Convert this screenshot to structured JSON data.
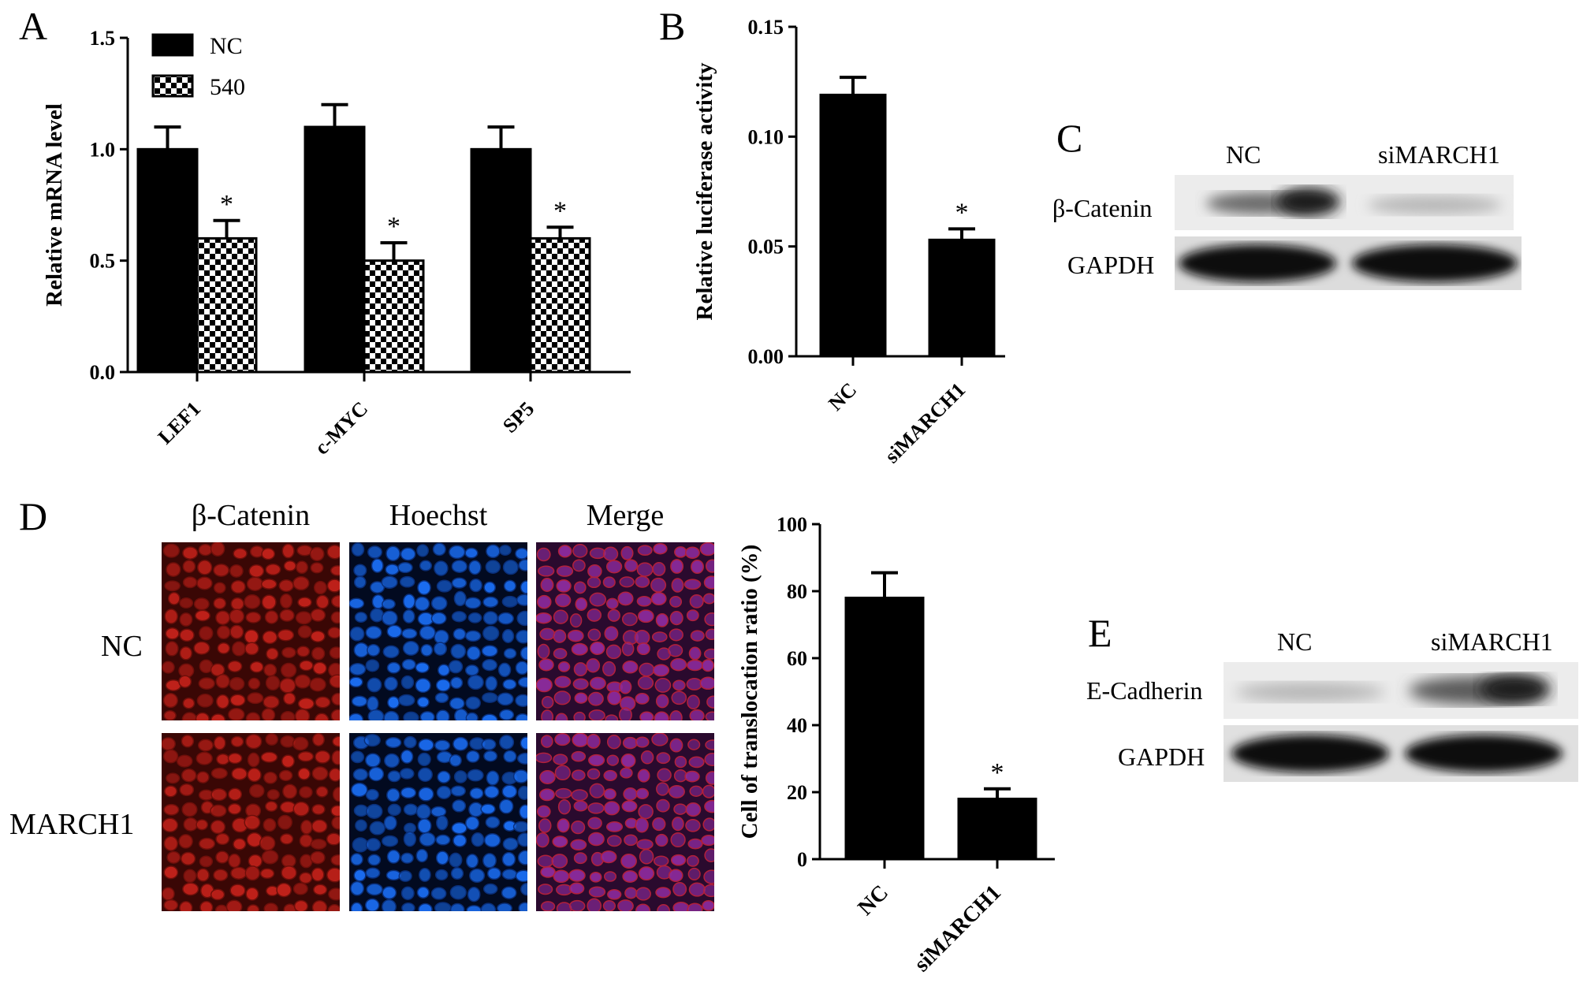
{
  "panels": {
    "A": {
      "label": "A"
    },
    "B": {
      "label": "B"
    },
    "C": {
      "label": "C"
    },
    "D": {
      "label": "D"
    },
    "E": {
      "label": "E"
    }
  },
  "chart_data": [
    {
      "panel": "A",
      "type": "bar",
      "categories": [
        "LEF1",
        "c-MYC",
        "SP5"
      ],
      "series": [
        {
          "name": "NC",
          "values": [
            1.0,
            1.1,
            1.0
          ],
          "errors": [
            0.1,
            0.1,
            0.1
          ],
          "fill": "solid"
        },
        {
          "name": "540",
          "values": [
            0.6,
            0.5,
            0.6
          ],
          "errors": [
            0.08,
            0.08,
            0.05
          ],
          "fill": "checkered"
        }
      ],
      "significance": [
        "*",
        "*",
        "*"
      ],
      "ylabel": "Relative   mRNA level",
      "ylim": [
        0,
        1.5
      ],
      "yticks": [
        "0.0",
        "0.5",
        "1.0",
        "1.5"
      ],
      "legend": "top-left"
    },
    {
      "panel": "B",
      "type": "bar",
      "categories": [
        "NC",
        "siMARCH1"
      ],
      "values": [
        0.119,
        0.053
      ],
      "errors": [
        0.008,
        0.005
      ],
      "significance": [
        "",
        "*"
      ],
      "ylabel": "Relative luciferase activity",
      "ylim": [
        0,
        0.15
      ],
      "yticks": [
        "0.00",
        "0.05",
        "0.10",
        "0.15"
      ]
    },
    {
      "panel": "D",
      "type": "bar",
      "categories": [
        "NC",
        "siMARCH1"
      ],
      "values": [
        78,
        18
      ],
      "errors": [
        7.5,
        3
      ],
      "significance": [
        "",
        "*"
      ],
      "ylabel": "Cell of translocation ratio (%)",
      "ylim": [
        0,
        100
      ],
      "yticks": [
        "0",
        "20",
        "40",
        "60",
        "80",
        "100"
      ]
    }
  ],
  "blots": {
    "C": {
      "lanes": [
        "NC",
        "siMARCH1"
      ],
      "rows": [
        "β-Catenin",
        "GAPDH"
      ]
    },
    "E": {
      "lanes": [
        "NC",
        "siMARCH1"
      ],
      "rows": [
        "E-Cadherin",
        "GAPDH"
      ]
    }
  },
  "microscopy": {
    "columns": [
      "β-Catenin",
      "Hoechst",
      "Merge"
    ],
    "rows": [
      "NC",
      "MARCH1"
    ],
    "colors": {
      "beta_catenin": "#c0211a",
      "hoechst": "#1a6cf0",
      "merge": "#8a2a9a"
    }
  }
}
